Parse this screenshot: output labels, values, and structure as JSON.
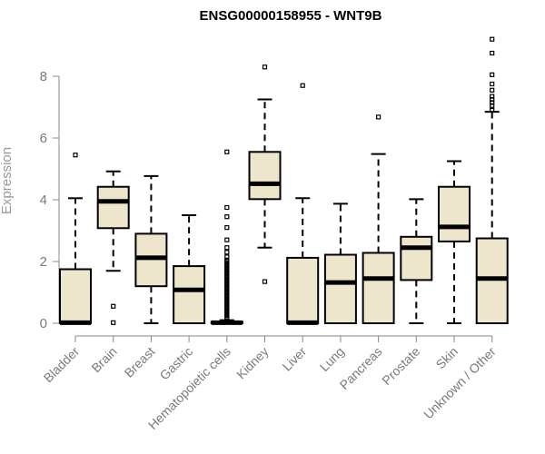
{
  "chart_data": {
    "type": "boxplot",
    "title": "ENSG00000158955 - WNT9B",
    "xlabel": "",
    "ylabel": "Expression",
    "ylim": [
      0,
      9.4
    ],
    "yticks": [
      0,
      2,
      4,
      6,
      8
    ],
    "box_fill": "#ede6cc",
    "categories": [
      "Bladder",
      "Brain",
      "Breast",
      "Gastric",
      "Hematopoietic cells",
      "Kidney",
      "Liver",
      "Lung",
      "Pancreas",
      "Prostate",
      "Skin",
      "Unknown / Other"
    ],
    "boxes": [
      {
        "name": "Bladder",
        "whisker_low": 0,
        "q1": 0,
        "median": 0.02,
        "q3": 1.75,
        "whisker_high": 4.05,
        "outliers": [
          5.45
        ]
      },
      {
        "name": "Brain",
        "whisker_low": 1.7,
        "q1": 3.08,
        "median": 3.95,
        "q3": 4.42,
        "whisker_high": 4.92,
        "outliers": [
          0.55,
          0.02
        ]
      },
      {
        "name": "Breast",
        "whisker_low": 0,
        "q1": 1.2,
        "median": 2.12,
        "q3": 2.9,
        "whisker_high": 4.77,
        "outliers": []
      },
      {
        "name": "Gastric",
        "whisker_low": 0,
        "q1": 0,
        "median": 1.08,
        "q3": 1.85,
        "whisker_high": 3.5,
        "outliers": []
      },
      {
        "name": "Hematopoietic cells",
        "whisker_low": 0,
        "q1": 0,
        "median": 0.02,
        "q3": 0.05,
        "whisker_high": 0.1,
        "outliers": [
          0.15,
          0.2,
          0.25,
          0.3,
          0.35,
          0.4,
          0.45,
          0.5,
          0.55,
          0.6,
          0.65,
          0.7,
          0.75,
          0.8,
          0.85,
          0.9,
          0.95,
          1.0,
          1.05,
          1.1,
          1.15,
          1.2,
          1.25,
          1.3,
          1.35,
          1.4,
          1.45,
          1.5,
          1.55,
          1.6,
          1.65,
          1.7,
          1.75,
          1.8,
          1.85,
          1.9,
          1.95,
          2.0,
          2.05,
          2.15,
          2.3,
          2.45,
          2.7,
          3.1,
          3.45,
          3.75,
          5.55
        ]
      },
      {
        "name": "Kidney",
        "whisker_low": 2.45,
        "q1": 4.02,
        "median": 4.52,
        "q3": 5.55,
        "whisker_high": 7.25,
        "outliers": [
          8.3,
          1.35
        ]
      },
      {
        "name": "Liver",
        "whisker_low": 0,
        "q1": 0,
        "median": 0.02,
        "q3": 2.12,
        "whisker_high": 4.05,
        "outliers": [
          7.7
        ]
      },
      {
        "name": "Lung",
        "whisker_low": 0,
        "q1": 0,
        "median": 1.32,
        "q3": 2.22,
        "whisker_high": 3.87,
        "outliers": []
      },
      {
        "name": "Pancreas",
        "whisker_low": 0,
        "q1": 0,
        "median": 1.45,
        "q3": 2.28,
        "whisker_high": 5.48,
        "outliers": [
          6.68
        ]
      },
      {
        "name": "Prostate",
        "whisker_low": 0,
        "q1": 1.4,
        "median": 2.45,
        "q3": 2.8,
        "whisker_high": 4.02,
        "outliers": []
      },
      {
        "name": "Skin",
        "whisker_low": 0,
        "q1": 2.65,
        "median": 3.12,
        "q3": 4.42,
        "whisker_high": 5.25,
        "outliers": []
      },
      {
        "name": "Unknown / Other",
        "whisker_low": 0,
        "q1": 0,
        "median": 1.45,
        "q3": 2.75,
        "whisker_high": 6.85,
        "outliers": [
          6.9,
          7.05,
          7.15,
          7.25,
          7.35,
          7.55,
          7.75,
          8.05,
          8.75,
          9.2
        ]
      }
    ]
  }
}
